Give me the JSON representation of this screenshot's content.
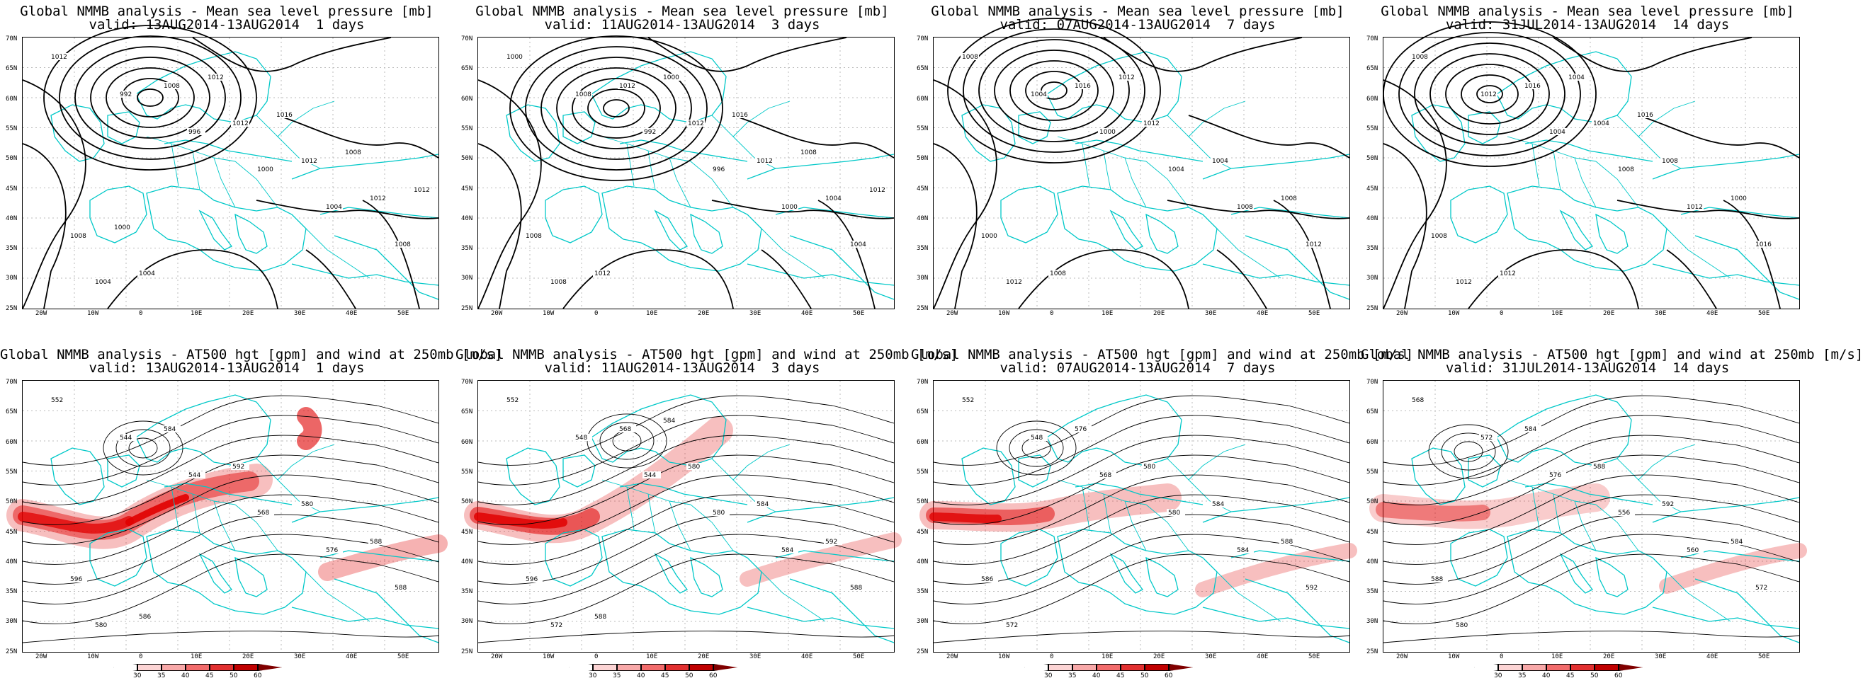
{
  "panels": [
    {
      "title1": "Global NMMB analysis - Mean sea level pressure [mb]",
      "title2": "valid: 13AUG2014-13AUG2014  1 days",
      "kind": "mslp"
    },
    {
      "title1": "Global NMMB analysis - Mean sea level pressure [mb]",
      "title2": "valid: 11AUG2014-13AUG2014  3 days",
      "kind": "mslp"
    },
    {
      "title1": "Global NMMB analysis - Mean sea level pressure [mb]",
      "title2": "valid: 07AUG2014-13AUG2014  7 days",
      "kind": "mslp"
    },
    {
      "title1": "Global NMMB analysis - Mean sea level pressure [mb]",
      "title2": "valid: 31JUL2014-13AUG2014  14 days",
      "kind": "mslp"
    },
    {
      "title1": "Global NMMB analysis - AT500 hgt [gpm] and wind at 250mb [m/s]",
      "title2": "valid: 13AUG2014-13AUG2014  1 days",
      "kind": "z500"
    },
    {
      "title1": "Global NMMB analysis - AT500 hgt [gpm] and wind at 250mb [m/s]",
      "title2": "valid: 11AUG2014-13AUG2014  3 days",
      "kind": "z500"
    },
    {
      "title1": "Global NMMB analysis - AT500 hgt [gpm] and wind at 250mb [m/s]",
      "title2": "valid: 07AUG2014-13AUG2014  7 days",
      "kind": "z500"
    },
    {
      "title1": "Global NMMB analysis - AT500 hgt [gpm] and wind at 250mb [m/s]",
      "title2": "valid: 31JUL2014-13AUG2014  14 days",
      "kind": "z500"
    }
  ],
  "lat_labels": [
    "70N",
    "65N",
    "60N",
    "55N",
    "50N",
    "45N",
    "40N",
    "35N",
    "30N",
    "25N"
  ],
  "lon_labels": [
    "20W",
    "10W",
    "0",
    "10E",
    "20E",
    "30E",
    "40E",
    "50E"
  ],
  "mslp_labels": [
    [
      "1012",
      "992",
      "996",
      "1000",
      "1004",
      "1008",
      "1004",
      "1008",
      "1012",
      "1012",
      "1012",
      "1008",
      "1004",
      "1012",
      "1016",
      "1008",
      "1012",
      "1000"
    ],
    [
      "1000",
      "1008",
      "992",
      "996",
      "1000",
      "1004",
      "1008",
      "1012",
      "1012",
      "1012",
      "1004",
      "1008",
      "1012",
      "1000",
      "1016",
      "1008",
      "1012"
    ],
    [
      "1008",
      "1004",
      "1000",
      "1004",
      "1008",
      "1012",
      "1012",
      "1016",
      "1012",
      "1004",
      "1008",
      "1000",
      "1008",
      "1012"
    ],
    [
      "1008",
      "1012",
      "1004",
      "1008",
      "1012",
      "1016",
      "1012",
      "1016",
      "1004",
      "1008",
      "1000",
      "1008",
      "1012",
      "1004",
      "1016"
    ]
  ],
  "z500_labels": [
    [
      "552",
      "544",
      "544",
      "568",
      "576",
      "588",
      "580",
      "584",
      "592",
      "580",
      "588",
      "596",
      "586"
    ],
    [
      "552",
      "548",
      "544",
      "580",
      "584",
      "588",
      "572",
      "568",
      "580",
      "584",
      "592",
      "596",
      "588",
      "584"
    ],
    [
      "552",
      "548",
      "568",
      "580",
      "584",
      "592",
      "572",
      "576",
      "580",
      "584",
      "588",
      "586"
    ],
    [
      "568",
      "572",
      "576",
      "556",
      "560",
      "572",
      "580",
      "584",
      "588",
      "592",
      "584",
      "588"
    ]
  ],
  "colorbar": {
    "ticks": [
      "30",
      "35",
      "40",
      "45",
      "50",
      "60"
    ],
    "colors": [
      "#ffffff",
      "#fcd4d4",
      "#f8a8a8",
      "#f26b6b",
      "#e23030",
      "#c00000",
      "#800000"
    ]
  },
  "colors": {
    "coast": "#00c8c8",
    "contour": "#000000",
    "jet": "#e00000"
  }
}
